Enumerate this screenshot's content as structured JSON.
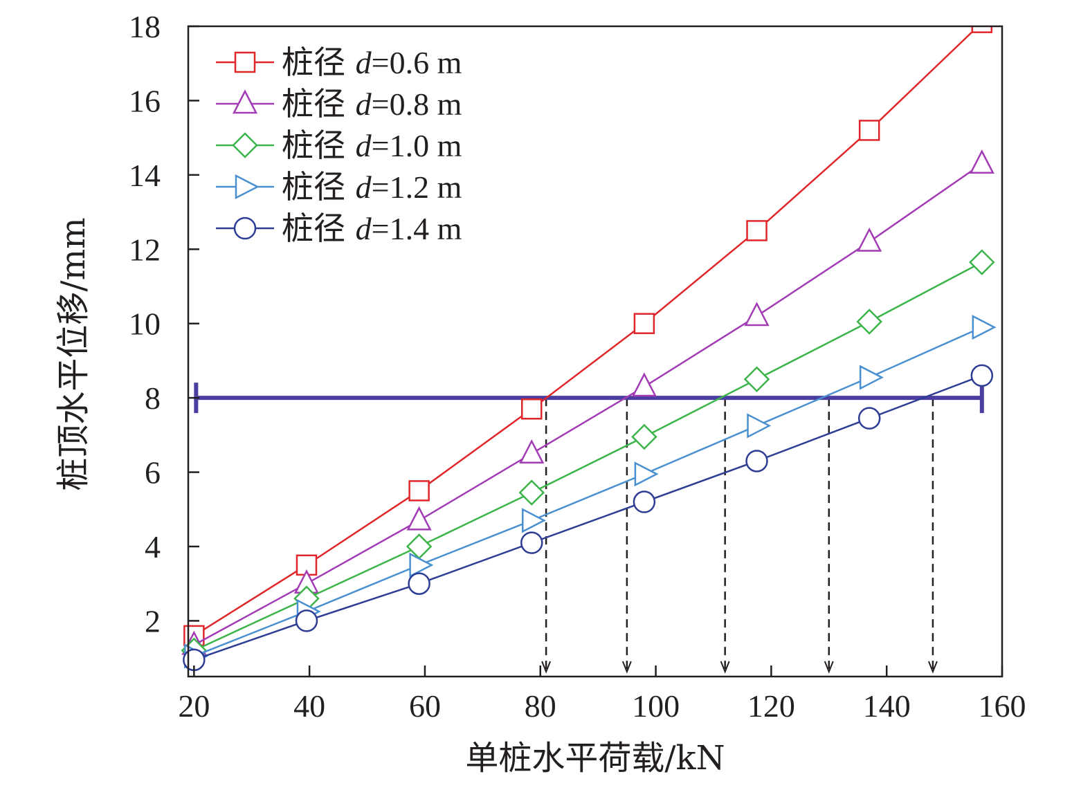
{
  "chart_data": {
    "type": "line",
    "xlabel": "单桩水平荷载/kN",
    "ylabel": "桩顶水平位移/mm",
    "xlim": [
      19,
      160
    ],
    "ylim": [
      0.5,
      18
    ],
    "xticks": [
      20,
      40,
      60,
      80,
      100,
      120,
      140,
      160
    ],
    "yticks": [
      2,
      4,
      6,
      8,
      10,
      12,
      14,
      16,
      18
    ],
    "legend_position": "top-left",
    "series": [
      {
        "name": "桩径 d=0.6 m",
        "legend_prefix": "桩径 ",
        "legend_var": "d",
        "legend_suffix": "=0.6 m",
        "color": "#e0262a",
        "marker": "square",
        "x": [
          20,
          39.5,
          59,
          78.5,
          98,
          117.5,
          137,
          156.5
        ],
        "y": [
          1.6,
          3.5,
          5.5,
          7.7,
          10.0,
          12.5,
          15.2,
          18.1
        ]
      },
      {
        "name": "桩径 d=0.8 m",
        "legend_prefix": "桩径 ",
        "legend_var": "d",
        "legend_suffix": "=0.8 m",
        "color": "#a23cb4",
        "marker": "triangle-up",
        "x": [
          20,
          39.5,
          59,
          78.5,
          98,
          117.5,
          137,
          156.5
        ],
        "y": [
          1.35,
          3.0,
          4.7,
          6.5,
          8.3,
          10.2,
          12.2,
          14.3
        ]
      },
      {
        "name": "桩径 d=1.0 m",
        "legend_prefix": "桩径 ",
        "legend_var": "d",
        "legend_suffix": "=1.0 m",
        "color": "#3cb44a",
        "marker": "diamond",
        "x": [
          20,
          39.5,
          59,
          78.5,
          98,
          117.5,
          137,
          156.5
        ],
        "y": [
          1.2,
          2.6,
          4.0,
          5.45,
          6.95,
          8.5,
          10.05,
          11.65
        ]
      },
      {
        "name": "桩径 d=1.2 m",
        "legend_prefix": "桩径 ",
        "legend_var": "d",
        "legend_suffix": "=1.2 m",
        "color": "#4a90d0",
        "marker": "triangle-right",
        "x": [
          20,
          39.5,
          59,
          78.5,
          98,
          117.5,
          137,
          156.5
        ],
        "y": [
          1.05,
          2.25,
          3.5,
          4.7,
          5.95,
          7.25,
          8.55,
          9.9
        ]
      },
      {
        "name": "桩径 d=1.4 m",
        "legend_prefix": "桩径 ",
        "legend_var": "d",
        "legend_suffix": "=1.4 m",
        "color": "#2e3d94",
        "marker": "circle",
        "x": [
          20,
          39.5,
          59,
          78.5,
          98,
          117.5,
          137,
          156.5
        ],
        "y": [
          0.95,
          2.0,
          3.0,
          4.1,
          5.2,
          6.3,
          7.45,
          8.6
        ]
      }
    ],
    "threshold_line": {
      "y": 8,
      "x_range": [
        20,
        156.5
      ],
      "color": "#4a3fa0"
    },
    "drop_lines": {
      "x": [
        81,
        95,
        112,
        130,
        148
      ],
      "from_y": 8,
      "color": "#231f20"
    }
  }
}
